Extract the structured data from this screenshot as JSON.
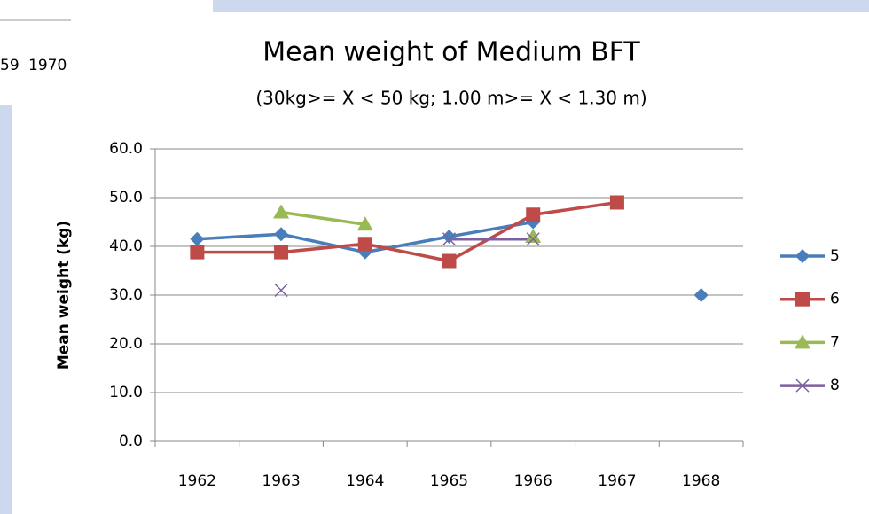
{
  "fragments": [
    "59",
    "1970"
  ],
  "chart_data": {
    "type": "line",
    "title": "Mean weight of Medium BFT",
    "subtitle": "(30kg>= X < 50 kg; 1.00 m>= X < 1.30 m)",
    "y_label": "Mean weight (kg)",
    "categories": [
      "1962",
      "1963",
      "1964",
      "1965",
      "1966",
      "1967",
      "1968"
    ],
    "series": [
      {
        "name": "5",
        "color": "#4a7ebb",
        "marker": "diamond",
        "values": [
          41.5,
          42.5,
          38.8,
          42,
          45,
          null,
          30
        ]
      },
      {
        "name": "6",
        "color": "#be4b48",
        "marker": "square",
        "values": [
          38.8,
          38.8,
          40.5,
          37,
          46.5,
          49,
          null
        ]
      },
      {
        "name": "7",
        "color": "#98b954",
        "marker": "triangle",
        "values": [
          null,
          47,
          44.5,
          null,
          42,
          null,
          null
        ]
      },
      {
        "name": "8",
        "color": "#7d60a0",
        "marker": "x",
        "values": [
          null,
          31,
          null,
          41.5,
          41.5,
          null,
          null
        ]
      }
    ],
    "ylim": [
      0,
      60
    ],
    "yticks": [
      {
        "value": 0,
        "label": "0.0"
      },
      {
        "value": 10,
        "label": "10.0"
      },
      {
        "value": 20,
        "label": "20.0"
      },
      {
        "value": 30,
        "label": "30.0"
      },
      {
        "value": 40,
        "label": "40.0"
      },
      {
        "value": 50,
        "label": "50.0"
      },
      {
        "value": 60,
        "label": "60.0"
      }
    ],
    "grid": true,
    "legend": "right"
  }
}
